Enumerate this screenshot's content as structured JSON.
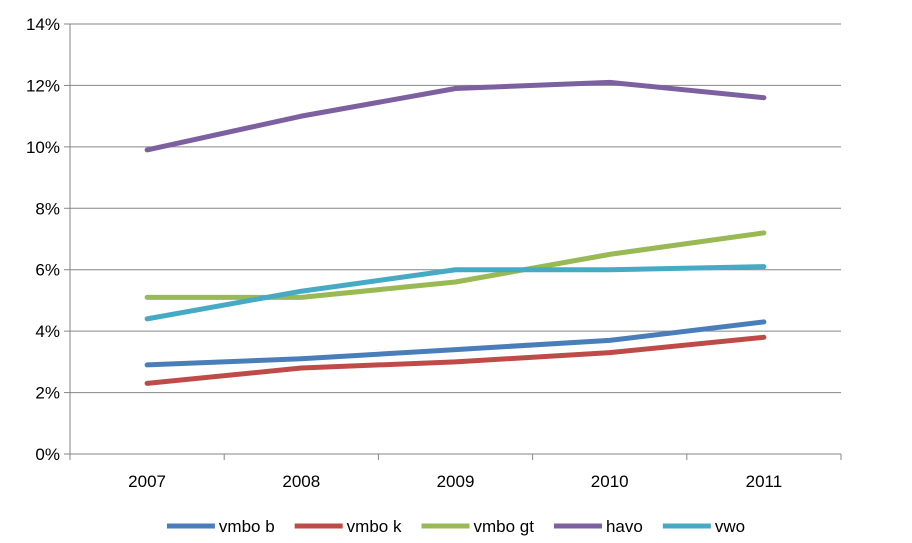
{
  "chart_data": {
    "type": "line",
    "categories": [
      "2007",
      "2008",
      "2009",
      "2010",
      "2011"
    ],
    "y_tick_labels": [
      "0%",
      "2%",
      "4%",
      "6%",
      "8%",
      "10%",
      "12%",
      "14%"
    ],
    "ylim": [
      0,
      14
    ],
    "y_unit": "%",
    "grid": true,
    "legend_position": "bottom",
    "series": [
      {
        "name": "vmbo b",
        "color": "#4a7ebb",
        "values": [
          2.9,
          3.1,
          3.4,
          3.7,
          4.3
        ]
      },
      {
        "name": "vmbo k",
        "color": "#be4b48",
        "values": [
          2.3,
          2.8,
          3.0,
          3.3,
          3.8
        ]
      },
      {
        "name": "vmbo gt",
        "color": "#98b954",
        "values": [
          5.1,
          5.1,
          5.6,
          6.5,
          7.2
        ]
      },
      {
        "name": "havo",
        "color": "#7d60a0",
        "values": [
          9.9,
          11.0,
          11.9,
          12.1,
          11.6
        ]
      },
      {
        "name": "vwo",
        "color": "#46aac5",
        "values": [
          4.4,
          5.3,
          6.0,
          6.0,
          6.1
        ]
      }
    ]
  }
}
